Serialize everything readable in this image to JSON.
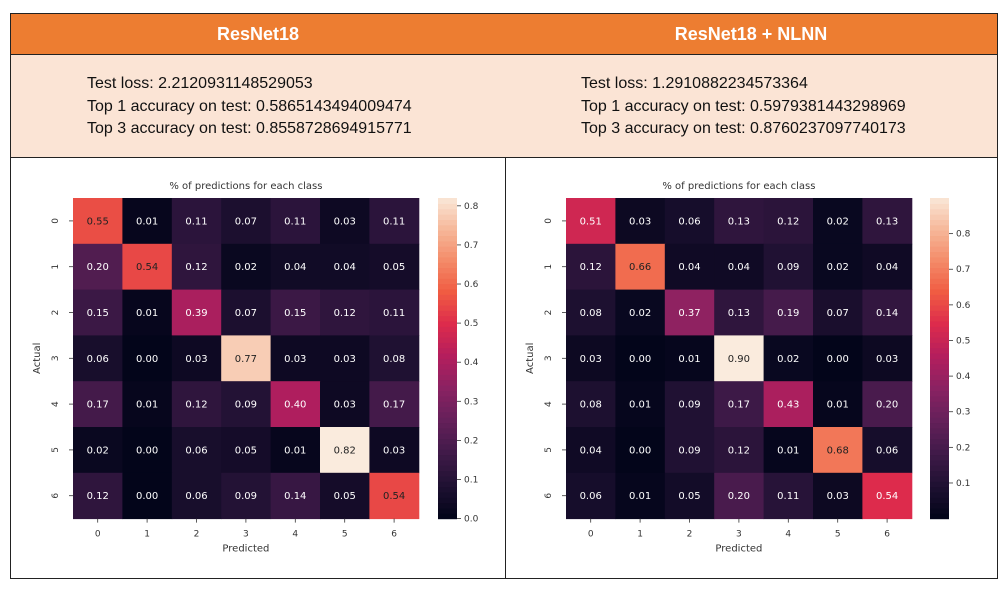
{
  "panels": [
    {
      "title": "ResNet18",
      "stats": {
        "loss": "Test loss: 2.2120931148529053",
        "top1": "Top 1 accuracy on test: 0.5865143494009474",
        "top3": "Top 3 accuracy on test: 0.8558728694915771"
      }
    },
    {
      "title": "ResNet18 + NLNN",
      "stats": {
        "loss": "Test loss: 1.2910882234573364",
        "top1": "Top 1 accuracy on test: 0.5979381443298969",
        "top3": "Top 3 accuracy on test: 0.8760237097740173"
      }
    }
  ],
  "chart_data": [
    {
      "type": "heatmap",
      "title": "% of predictions for each class",
      "xlabel": "Predicted",
      "ylabel": "Actual",
      "x_ticks": [
        "0",
        "1",
        "2",
        "3",
        "4",
        "5",
        "6"
      ],
      "y_ticks": [
        "0",
        "1",
        "2",
        "3",
        "4",
        "5",
        "6"
      ],
      "vmin": 0.0,
      "vmax": 0.82,
      "colorbar_ticks": [
        "0.0",
        "0.1",
        "0.2",
        "0.3",
        "0.4",
        "0.5",
        "0.6",
        "0.7",
        "0.8"
      ],
      "colormap": "rocket",
      "values": [
        [
          0.55,
          0.01,
          0.11,
          0.07,
          0.11,
          0.03,
          0.11
        ],
        [
          0.2,
          0.54,
          0.12,
          0.02,
          0.04,
          0.04,
          0.05
        ],
        [
          0.15,
          0.01,
          0.39,
          0.07,
          0.15,
          0.12,
          0.11
        ],
        [
          0.06,
          0.0,
          0.03,
          0.77,
          0.03,
          0.03,
          0.08
        ],
        [
          0.17,
          0.01,
          0.12,
          0.09,
          0.4,
          0.03,
          0.17
        ],
        [
          0.02,
          0.0,
          0.06,
          0.05,
          0.01,
          0.82,
          0.03
        ],
        [
          0.12,
          0.0,
          0.06,
          0.09,
          0.14,
          0.05,
          0.54
        ]
      ]
    },
    {
      "type": "heatmap",
      "title": "% of predictions for each class",
      "xlabel": "Predicted",
      "ylabel": "Actual",
      "x_ticks": [
        "0",
        "1",
        "2",
        "3",
        "4",
        "5",
        "6"
      ],
      "y_ticks": [
        "0",
        "1",
        "2",
        "3",
        "4",
        "5",
        "6"
      ],
      "vmin": 0.0,
      "vmax": 0.9,
      "colorbar_ticks": [
        "0.1",
        "0.2",
        "0.3",
        "0.4",
        "0.5",
        "0.6",
        "0.7",
        "0.8"
      ],
      "colormap": "rocket",
      "values": [
        [
          0.51,
          0.03,
          0.06,
          0.13,
          0.12,
          0.02,
          0.13
        ],
        [
          0.12,
          0.66,
          0.04,
          0.04,
          0.09,
          0.02,
          0.04
        ],
        [
          0.08,
          0.02,
          0.37,
          0.13,
          0.19,
          0.07,
          0.14
        ],
        [
          0.03,
          0.0,
          0.01,
          0.9,
          0.02,
          0.0,
          0.03
        ],
        [
          0.08,
          0.01,
          0.09,
          0.17,
          0.43,
          0.01,
          0.2
        ],
        [
          0.04,
          0.0,
          0.09,
          0.12,
          0.01,
          0.68,
          0.06
        ],
        [
          0.06,
          0.01,
          0.05,
          0.2,
          0.11,
          0.03,
          0.54
        ]
      ]
    }
  ]
}
